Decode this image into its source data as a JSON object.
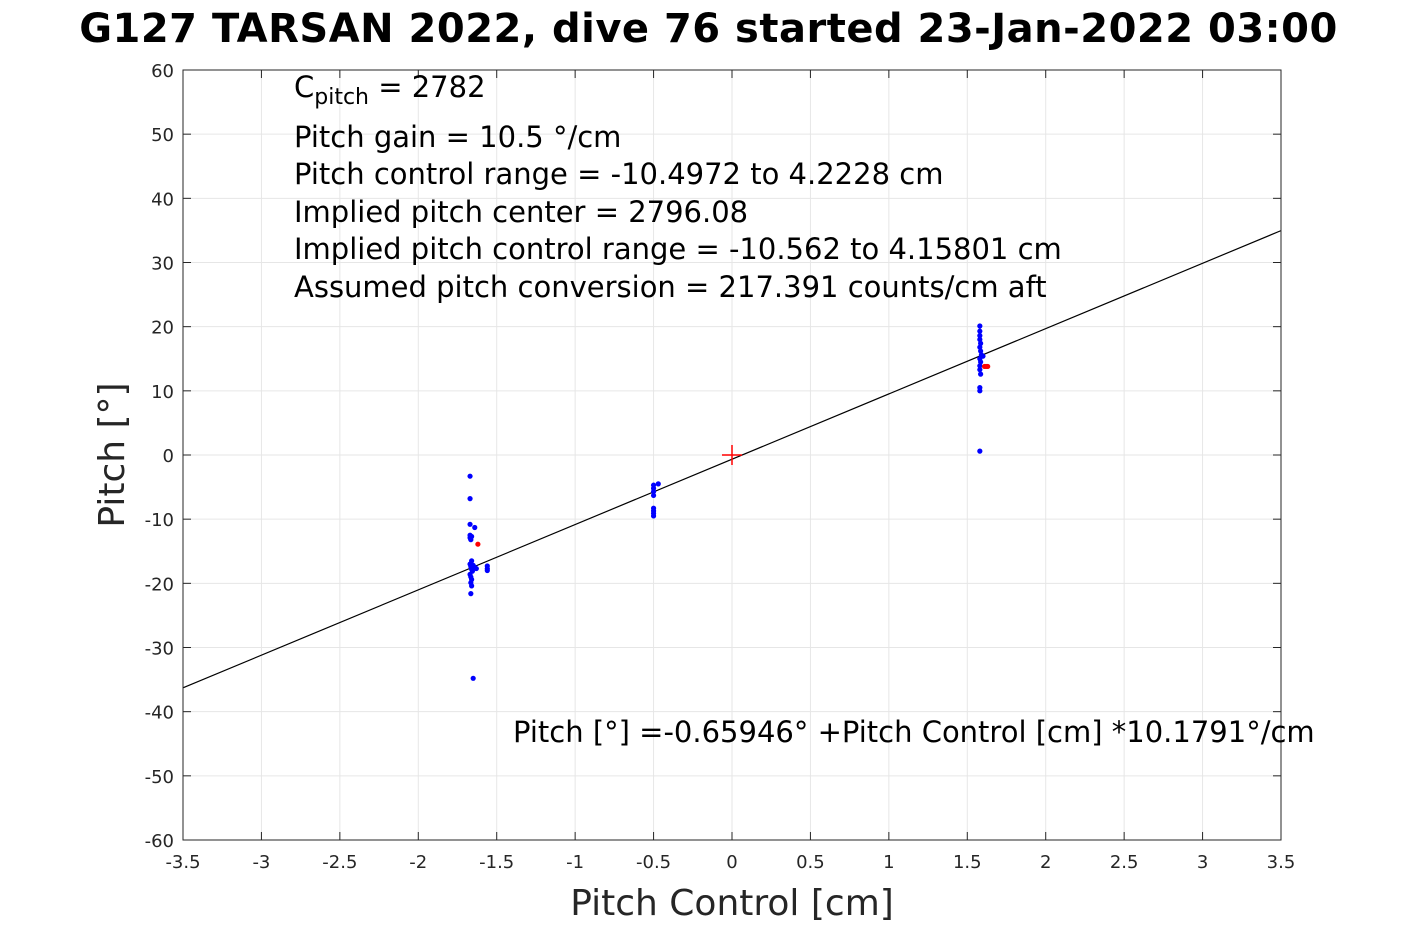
{
  "chart_data": {
    "type": "scatter",
    "title": "G127 TARSAN 2022, dive 76 started 23-Jan-2022 03:00",
    "xlabel": "Pitch Control [cm]",
    "ylabel": "Pitch [°]",
    "xlim": [
      -3.5,
      3.5
    ],
    "ylim": [
      -60,
      60
    ],
    "grid": true,
    "x_ticks": [
      "-3.5",
      "-3",
      "-2.5",
      "-2",
      "-1.5",
      "-1",
      "-0.5",
      "0",
      "0.5",
      "1",
      "1.5",
      "2",
      "2.5",
      "3",
      "3.5"
    ],
    "y_ticks": [
      "60",
      "50",
      "40",
      "30",
      "20",
      "10",
      "0",
      "-10",
      "-20",
      "-30",
      "-40",
      "-50",
      "-60"
    ],
    "colors": {
      "series_blue": "#0000ff",
      "series_red": "#ff0000",
      "fit_line": "#000000",
      "grid": "#e6e6e6"
    },
    "fit_line": {
      "intercept": -0.65946,
      "slope": 10.1791
    },
    "center_marker": {
      "x": 0,
      "y": 0,
      "symbol": "+"
    },
    "series": [
      {
        "color": "#0000ff",
        "points": [
          [
            -1.67,
            -3.3
          ],
          [
            -1.67,
            -6.8
          ],
          [
            -1.67,
            -10.8
          ],
          [
            -1.67,
            -12.5
          ],
          [
            -1.67,
            -12.9
          ],
          [
            -1.665,
            -13.2
          ],
          [
            -1.66,
            -12.7
          ],
          [
            -1.64,
            -11.3
          ],
          [
            -1.66,
            -16.5
          ],
          [
            -1.67,
            -17.0
          ],
          [
            -1.665,
            -17.4
          ],
          [
            -1.66,
            -17.8
          ],
          [
            -1.655,
            -18.1
          ],
          [
            -1.67,
            -18.6
          ],
          [
            -1.665,
            -19.0
          ],
          [
            -1.66,
            -19.4
          ],
          [
            -1.665,
            -19.9
          ],
          [
            -1.66,
            -20.4
          ],
          [
            -1.665,
            -21.6
          ],
          [
            -1.65,
            -17.2
          ],
          [
            -1.64,
            -17.5
          ],
          [
            -1.63,
            -17.7
          ],
          [
            -1.56,
            -17.3
          ],
          [
            -1.56,
            -17.7
          ],
          [
            -1.56,
            -18.0
          ],
          [
            -1.65,
            -34.8
          ],
          [
            -0.5,
            -4.7
          ],
          [
            -0.47,
            -4.5
          ],
          [
            -0.5,
            -5.2
          ],
          [
            -0.5,
            -5.7
          ],
          [
            -0.5,
            -6.3
          ],
          [
            -0.5,
            -8.3
          ],
          [
            -0.5,
            -8.7
          ],
          [
            -0.5,
            -9.1
          ],
          [
            -0.5,
            -9.5
          ],
          [
            1.58,
            20.1
          ],
          [
            1.58,
            19.3
          ],
          [
            1.58,
            18.6
          ],
          [
            1.58,
            18.0
          ],
          [
            1.585,
            17.4
          ],
          [
            1.58,
            16.8
          ],
          [
            1.585,
            16.2
          ],
          [
            1.59,
            15.6
          ],
          [
            1.58,
            15.0
          ],
          [
            1.585,
            14.5
          ],
          [
            1.58,
            13.9
          ],
          [
            1.58,
            13.3
          ],
          [
            1.585,
            12.6
          ],
          [
            1.58,
            10.5
          ],
          [
            1.58,
            10.0
          ],
          [
            1.58,
            0.6
          ],
          [
            1.6,
            15.4
          ]
        ]
      },
      {
        "color": "#ff0000",
        "points": [
          [
            -1.62,
            -13.9
          ],
          [
            1.61,
            13.8
          ],
          [
            1.62,
            13.8
          ],
          [
            1.63,
            13.8
          ]
        ]
      }
    ],
    "annotations": {
      "cpitch_main": "C",
      "cpitch_sub": "pitch",
      "cpitch_value": " = 2782",
      "pitch_gain": "Pitch gain = 10.5 °/cm",
      "control_range": "Pitch control range = -10.4972 to 4.2228 cm",
      "implied_center": "Implied pitch center = 2796.08",
      "implied_range": "Implied pitch control range = -10.562 to 4.15801 cm",
      "conversion": "Assumed pitch conversion = 217.391 counts/cm aft",
      "fit_equation": "Pitch [°] =-0.65946° +Pitch Control [cm] *10.1791°/cm"
    }
  }
}
